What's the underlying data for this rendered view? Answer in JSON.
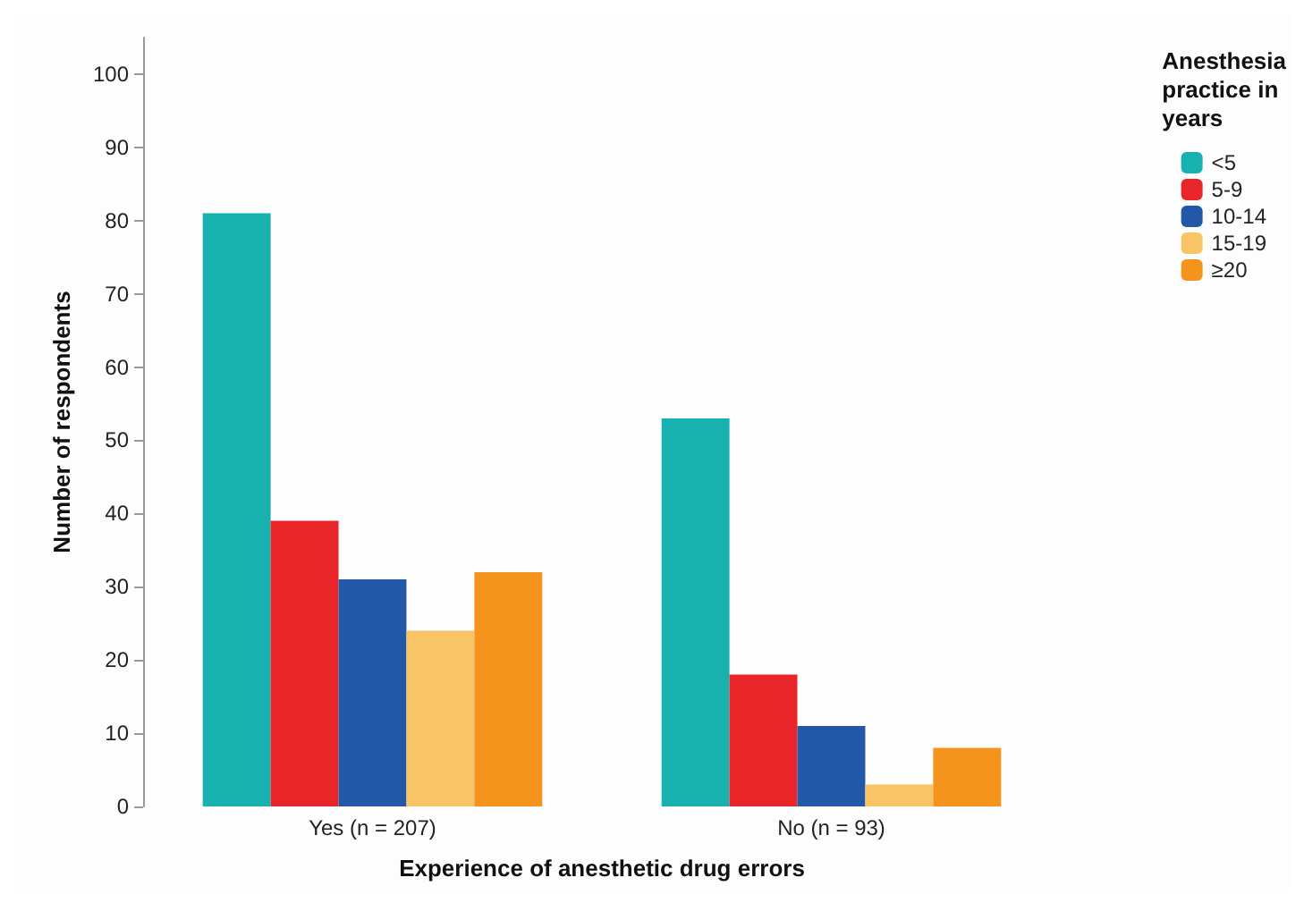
{
  "chart_data": {
    "type": "bar",
    "xlabel": "Experience of anesthetic drug errors",
    "ylabel": "Number of respondents",
    "legend_title": "Anesthesia practice in years",
    "categories": [
      "Yes (n = 207)",
      "No (n = 93)"
    ],
    "series": [
      {
        "name": "<5",
        "color": "#17b1b0",
        "values": [
          81,
          53
        ]
      },
      {
        "name": "5-9",
        "color": "#e8262a",
        "values": [
          39,
          18
        ]
      },
      {
        "name": "10-14",
        "color": "#2357a8",
        "values": [
          31,
          11
        ]
      },
      {
        "name": "15-19",
        "color": "#f8c466",
        "values": [
          24,
          3
        ]
      },
      {
        "name": "≥20",
        "color": "#f4941c",
        "values": [
          32,
          8
        ]
      }
    ],
    "ylim": [
      0,
      105
    ],
    "yticks": [
      0,
      10,
      20,
      30,
      40,
      50,
      60,
      70,
      80,
      90,
      100
    ],
    "grid": false,
    "legend": "top right"
  }
}
